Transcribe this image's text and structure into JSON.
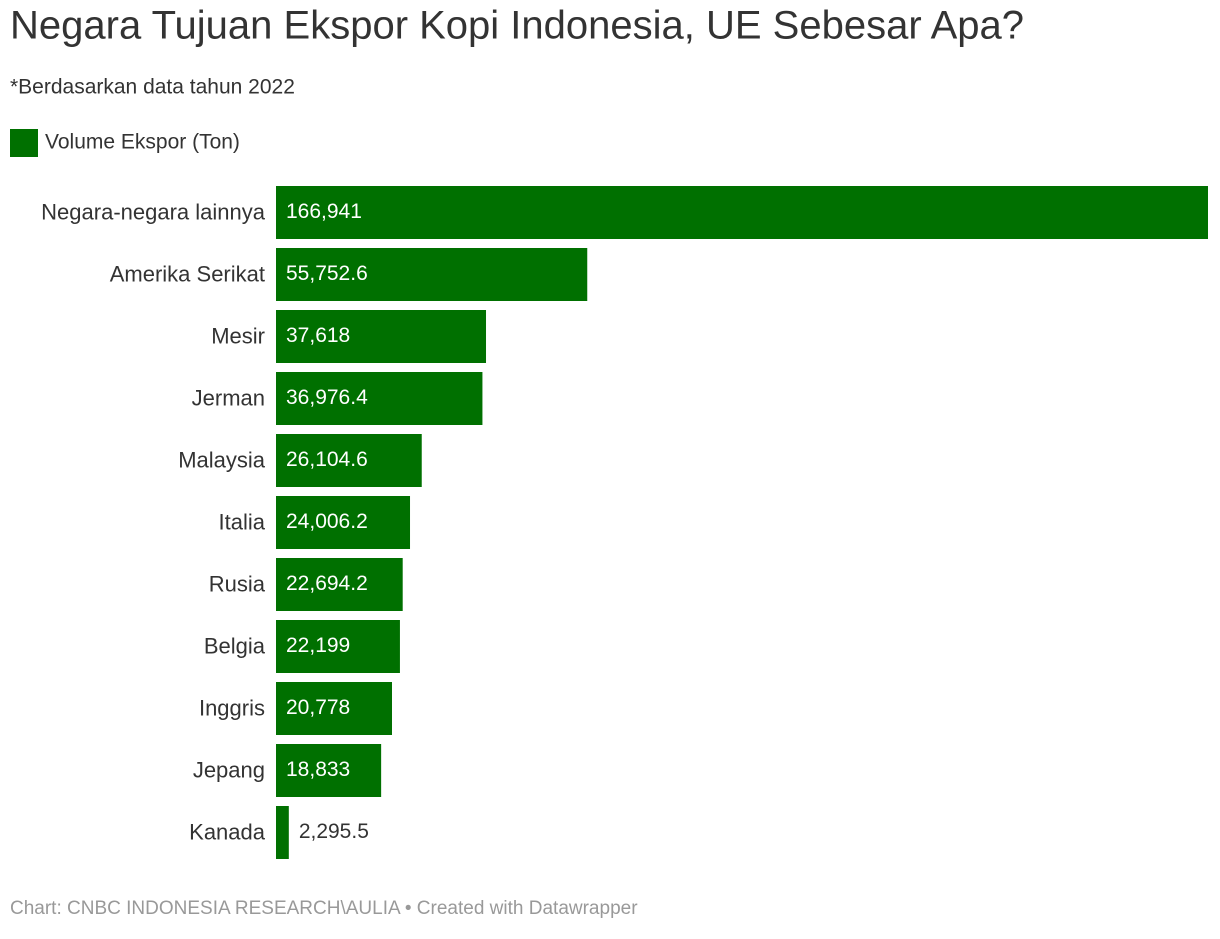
{
  "chart_data": {
    "type": "bar",
    "orientation": "horizontal",
    "title": "Negara Tujuan Ekspor Kopi Indonesia, UE Sebesar Apa?",
    "subtitle": "*Berdasarkan data tahun 2022",
    "categories": [
      "Negara-negara lainnya",
      "Amerika Serikat",
      "Mesir",
      "Jerman",
      "Malaysia",
      "Italia",
      "Rusia",
      "Belgia",
      "Inggris",
      "Jepang",
      "Kanada"
    ],
    "series": [
      {
        "name": "Volume Ekspor (Ton)",
        "color": "#007000",
        "values": [
          166941,
          55752.6,
          37618,
          36976.4,
          26104.6,
          24006.2,
          22694.2,
          22199,
          20778,
          18833,
          2295.5
        ],
        "value_labels": [
          "166,941",
          "55,752.6",
          "37,618",
          "36,976.4",
          "26,104.6",
          "24,006.2",
          "22,694.2",
          "22,199",
          "20,778",
          "18,833",
          "2,295.5"
        ]
      }
    ],
    "xlim": [
      0,
      166941
    ],
    "source": "Chart: CNBC INDONESIA RESEARCH\\AULIA • Created with Datawrapper"
  }
}
